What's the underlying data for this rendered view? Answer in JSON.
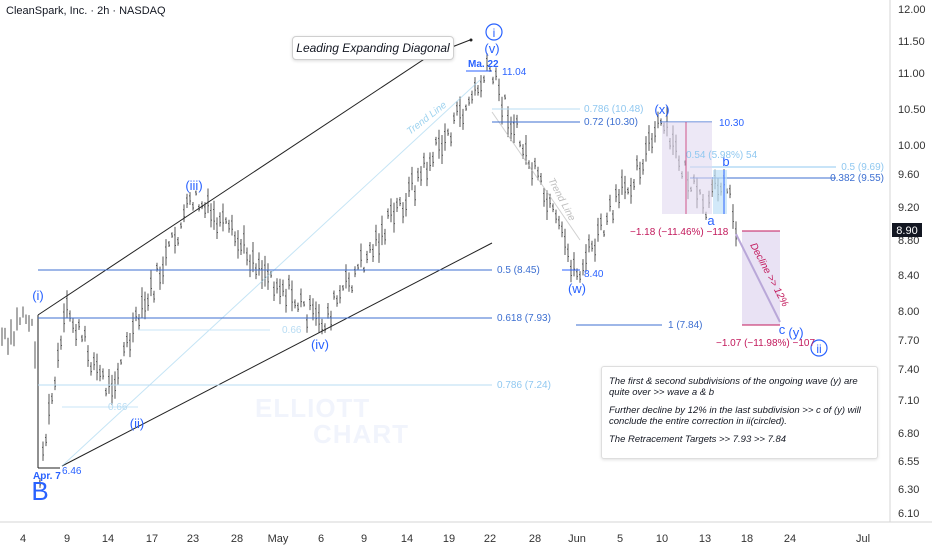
{
  "header": {
    "title": "CleanSpark, Inc. · 2h · NASDAQ",
    "pattern_label": "Leading Expanding Diagonal"
  },
  "watermark": {
    "line1": "ELLIOTT",
    "line2": "CHART"
  },
  "colors": {
    "fib_blue": "#2962ff",
    "fib_light": "#90c8f0",
    "magenta": "#c2185b",
    "box_purple": "#e1d8f0",
    "grey_line": "#222222"
  },
  "chart_data": {
    "type": "candlestick",
    "title": "CleanSpark, Inc. · 2h · NASDAQ",
    "y_axis": {
      "position": "right",
      "scale": "linear",
      "ticks": [
        "12.00",
        "11.50",
        "11.00",
        "10.50",
        "10.00",
        "9.60",
        "9.20",
        "8.80",
        "8.40",
        "8.00",
        "7.70",
        "7.40",
        "7.10",
        "6.80",
        "6.55",
        "6.30",
        "6.10"
      ],
      "current_price": "8.90"
    },
    "x_axis": {
      "ticks": [
        "4",
        "9",
        "14",
        "17",
        "23",
        "28",
        "May",
        "6",
        "9",
        "14",
        "19",
        "22",
        "28",
        "Jun",
        "5",
        "10",
        "13",
        "18",
        "24",
        "Jul"
      ]
    },
    "price_path": [
      {
        "date": "Apr 7",
        "price": 6.46
      },
      {
        "date": "Apr 9",
        "price": 8.0
      },
      {
        "date": "Apr 14",
        "price": 7.2
      },
      {
        "date": "Apr 23",
        "price": 9.3
      },
      {
        "date": "May 6",
        "price": 7.85
      },
      {
        "date": "May 22",
        "price": 11.04
      },
      {
        "date": "Jun 2",
        "price": 8.4
      },
      {
        "date": "Jun 10",
        "price": 10.3
      },
      {
        "date": "Jun 13",
        "price": 9.1
      },
      {
        "date": "Jun 16",
        "price": 9.65
      },
      {
        "date": "Jun 17",
        "price": 8.9
      }
    ],
    "price_labels": [
      {
        "text": "11.04",
        "price": 11.04
      },
      {
        "text": "8.40",
        "price": 8.4
      },
      {
        "text": "6.46",
        "price": 6.46
      },
      {
        "text": "10.30",
        "price": 10.3
      }
    ],
    "date_labels": [
      {
        "text": "Ma. 22",
        "date": "May 22"
      },
      {
        "text": "Apr. 7",
        "date": "Apr 7"
      }
    ],
    "wave_labels": [
      {
        "text": "B",
        "price": 6.35
      },
      {
        "text": "(i)",
        "price": 8.1
      },
      {
        "text": "(ii)",
        "price": 6.95
      },
      {
        "text": "(iii)",
        "price": 9.4
      },
      {
        "text": "(iv)",
        "price": 7.65
      },
      {
        "text": "(v)",
        "price": 11.35
      },
      {
        "text": "i",
        "price": 11.65
      },
      {
        "text": "(w)",
        "price": 8.2
      },
      {
        "text": "(x)",
        "price": 10.5
      },
      {
        "text": "a",
        "price": 9.08
      },
      {
        "text": "b",
        "price": 9.75
      },
      {
        "text": "c",
        "price": 7.84
      },
      {
        "text": "(y)",
        "price": 7.82
      },
      {
        "text": "ii",
        "price": 7.63
      }
    ],
    "fib_levels": [
      {
        "text": "0.786 (10.48)",
        "price": 10.48
      },
      {
        "text": "0.72 (10.30)",
        "price": 10.3
      },
      {
        "text": "0.5 (8.45)",
        "price": 8.45
      },
      {
        "text": "0.618 (7.93)",
        "price": 7.93
      },
      {
        "text": "0.786 (7.24)",
        "price": 7.24
      },
      {
        "text": "0.5 (9.69)",
        "price": 9.69
      },
      {
        "text": "0.382 (9.55)",
        "price": 9.55
      },
      {
        "text": "1 (7.84)",
        "price": 7.84
      },
      {
        "text": "0.66",
        "price": 7.87
      },
      {
        "text": "0.66",
        "price": 7.05
      }
    ],
    "measurements": [
      {
        "text": "0.54 (5.98%) 54",
        "price": 9.9
      },
      {
        "text": "−1.18 (−11.46%) −118",
        "price": 8.88
      },
      {
        "text": "−1.07 (−11.98%) −107",
        "price": 7.62
      }
    ],
    "annotations": [
      {
        "text": "Trend Line"
      },
      {
        "text": "Trend Line"
      },
      {
        "text": "Decline >> 12%"
      }
    ]
  },
  "note": {
    "p1": "The first & second subdivisions of the ongoing wave (y) are quite over >> wave a & b",
    "p2": "Further decline by 12% in the last subdivision >> c of (y) will conclude the entire correction in ii(circled).",
    "p3": "The Retracement Targets  >> 7.93  >>  7.84"
  }
}
